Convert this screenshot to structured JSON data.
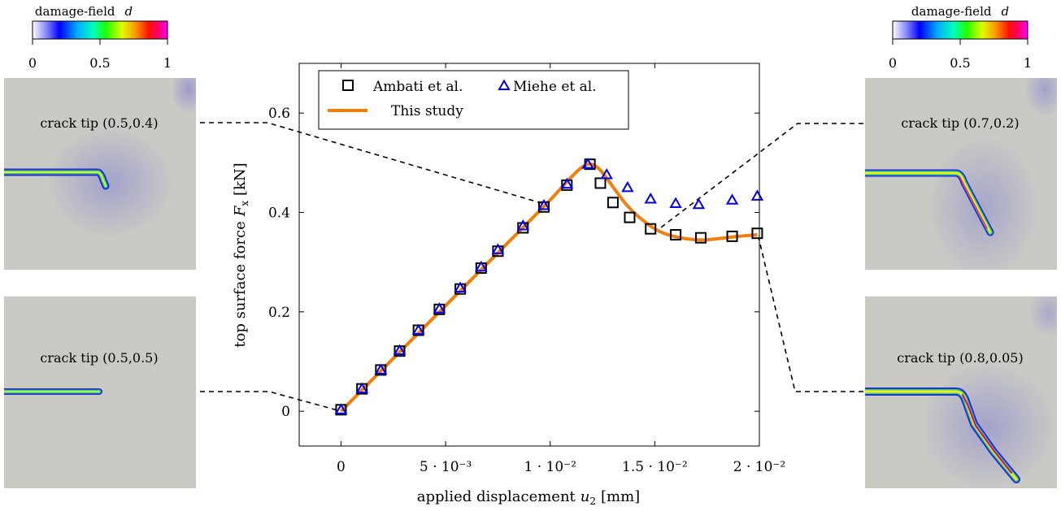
{
  "colorbar": {
    "title": "damage-field",
    "symbol": "d",
    "ticks": [
      "0",
      "0.5",
      "1"
    ]
  },
  "panels": [
    {
      "id": "tl",
      "label": "crack tip (0.5,0.4)"
    },
    {
      "id": "bl",
      "label": "crack tip (0.5,0.5)"
    },
    {
      "id": "tr",
      "label": "crack tip (0.7,0.2)"
    },
    {
      "id": "br",
      "label": "crack tip (0.8,0.05)"
    }
  ],
  "colors": {
    "study": "#f27f0c",
    "ambati": "#000000",
    "miehe": "#0000ee",
    "field_background": "#cacac5",
    "crack_core": "#e0007a"
  },
  "chart_data": {
    "type": "scatter",
    "xlabel_main": "applied displacement",
    "xlabel_var": "u",
    "xlabel_sub": "2",
    "xlabel_unit": "[mm]",
    "ylabel_main": "top surface force",
    "ylabel_var": "F",
    "ylabel_sub": "x",
    "ylabel_unit": "[kN]",
    "xlim": [
      -0.002,
      0.02
    ],
    "ylim": [
      -0.07,
      0.7
    ],
    "x_ticks": [
      {
        "value": 0,
        "label": "0"
      },
      {
        "value": 0.005,
        "label": "5 · 10⁻³"
      },
      {
        "value": 0.01,
        "label": "1 · 10⁻²"
      },
      {
        "value": 0.015,
        "label": "1.5 · 10⁻²"
      },
      {
        "value": 0.02,
        "label": "2 · 10⁻²"
      }
    ],
    "y_ticks": [
      {
        "value": 0,
        "label": "0"
      },
      {
        "value": 0.2,
        "label": "0.2"
      },
      {
        "value": 0.4,
        "label": "0.4"
      },
      {
        "value": 0.6,
        "label": "0.6"
      }
    ],
    "legend_position": "top-left",
    "series": [
      {
        "name": "Ambati et al.",
        "marker": "square",
        "x": [
          0,
          0.001,
          0.0019,
          0.0028,
          0.0037,
          0.0047,
          0.0057,
          0.0067,
          0.0075,
          0.0087,
          0.0097,
          0.0108,
          0.0119,
          0.0124,
          0.013,
          0.0138,
          0.0148,
          0.016,
          0.0172,
          0.0187,
          0.0199
        ],
        "y": [
          0.003,
          0.045,
          0.083,
          0.121,
          0.163,
          0.205,
          0.246,
          0.288,
          0.322,
          0.369,
          0.411,
          0.455,
          0.497,
          0.459,
          0.42,
          0.39,
          0.367,
          0.355,
          0.349,
          0.352,
          0.358
        ]
      },
      {
        "name": "Miehe et al.",
        "marker": "triangle",
        "x": [
          0,
          0.001,
          0.0019,
          0.0028,
          0.0037,
          0.0047,
          0.0057,
          0.0067,
          0.0075,
          0.0087,
          0.0097,
          0.0108,
          0.0118,
          0.0127,
          0.0137,
          0.0148,
          0.016,
          0.0171,
          0.0187,
          0.0199
        ],
        "y": [
          0.003,
          0.045,
          0.083,
          0.122,
          0.163,
          0.206,
          0.248,
          0.29,
          0.325,
          0.373,
          0.414,
          0.457,
          0.497,
          0.476,
          0.45,
          0.427,
          0.418,
          0.416,
          0.425,
          0.433
        ]
      },
      {
        "name": "This study",
        "marker": "line",
        "x": [
          0,
          0.002,
          0.004,
          0.006,
          0.008,
          0.01,
          0.0108,
          0.0114,
          0.0118,
          0.0121,
          0.0124,
          0.0128,
          0.0132,
          0.0136,
          0.014,
          0.0145,
          0.015,
          0.0155,
          0.016,
          0.0165,
          0.017,
          0.0175,
          0.018,
          0.019,
          0.0199
        ],
        "y": [
          0,
          0.085,
          0.17,
          0.255,
          0.34,
          0.425,
          0.462,
          0.487,
          0.497,
          0.495,
          0.485,
          0.463,
          0.44,
          0.418,
          0.4,
          0.382,
          0.367,
          0.357,
          0.351,
          0.347,
          0.345,
          0.345,
          0.347,
          0.352,
          0.355
        ]
      }
    ]
  }
}
